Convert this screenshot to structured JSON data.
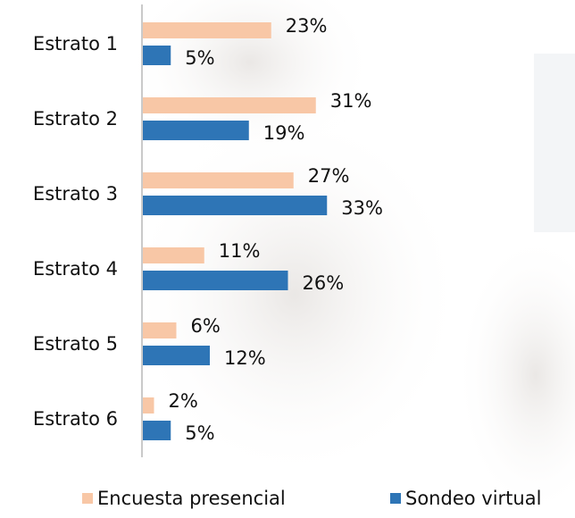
{
  "chart_data": {
    "type": "hbar",
    "categories": [
      "Estrato 1",
      "Estrato 2",
      "Estrato 3",
      "Estrato 4",
      "Estrato 5",
      "Estrato 6"
    ],
    "series": [
      {
        "name": "Encuesta presencial",
        "color": "#f8c7a6",
        "values": [
          23,
          31,
          27,
          11,
          6,
          2
        ],
        "value_labels": [
          "23%",
          "31%",
          "27%",
          "11%",
          "6%",
          "2%"
        ]
      },
      {
        "name": "Sondeo virtual",
        "color": "#2e75b6",
        "values": [
          5,
          19,
          33,
          26,
          12,
          5
        ],
        "value_labels": [
          "5%",
          "19%",
          "33%",
          "26%",
          "12%",
          "5%"
        ]
      }
    ],
    "legend": "bottom"
  }
}
